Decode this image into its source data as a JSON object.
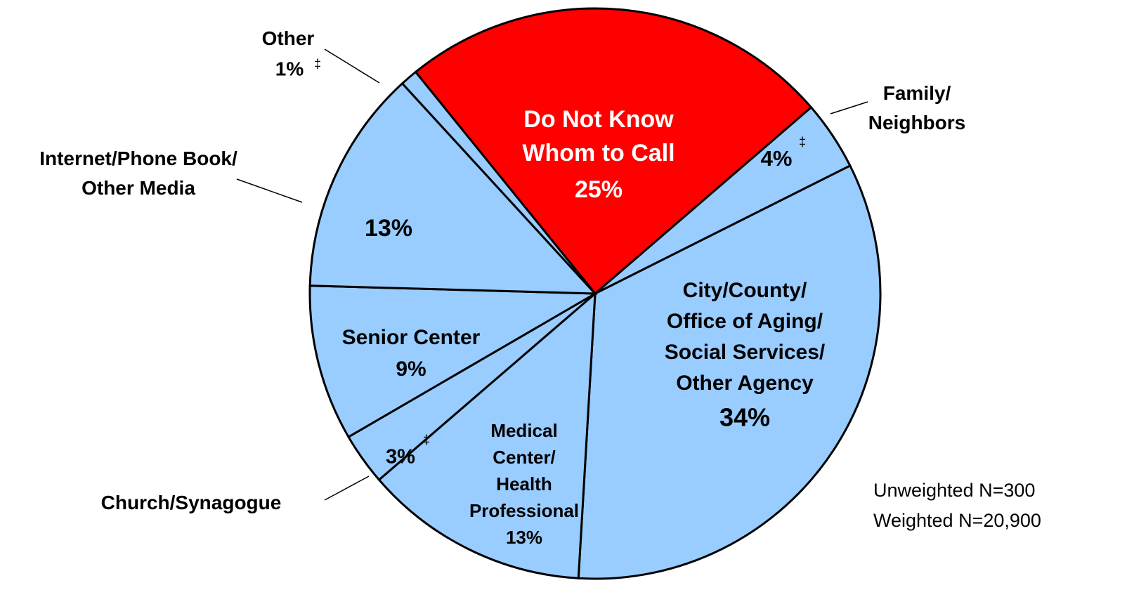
{
  "chart_data": {
    "type": "pie",
    "categories": [
      "Do Not Know\nWhom to Call",
      "Family/\nNeighbors",
      "City/County/\nOffice of Aging/\nSocial Services/\nOther Agency",
      "Medical\nCenter/\nHealth\nProfessional",
      "Church/Synagogue",
      "Senior Center",
      "Internet/Phone Book/\nOther Media",
      "Other"
    ],
    "values": [
      25,
      4,
      34,
      13,
      3,
      9,
      13,
      1
    ],
    "value_labels": [
      "25%",
      "4%",
      "34%",
      "13%",
      "3%",
      "9%",
      "13%",
      "1%"
    ],
    "value_notes": [
      null,
      "‡",
      null,
      null,
      "‡",
      null,
      null,
      "‡"
    ],
    "colors": [
      "#ff0000",
      "#99ccff",
      "#99ccff",
      "#99ccff",
      "#99ccff",
      "#99ccff",
      "#99ccff",
      "#99ccff"
    ],
    "notes": [
      "Unweighted N=300",
      "Weighted N=20,900"
    ]
  }
}
